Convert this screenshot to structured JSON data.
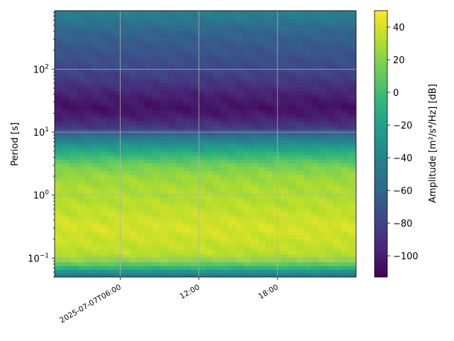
{
  "chart_data": {
    "type": "heatmap",
    "title": "",
    "xlabel": "",
    "ylabel": "Period [s]",
    "x_axis": {
      "type": "time",
      "range": [
        "2025-07-07T01:00:00",
        "2025-07-08T00:00:00"
      ],
      "ticks": [
        {
          "value": "2025-07-07T06:00:00",
          "label": "2025-07-07T06:00"
        },
        {
          "value": "2025-07-07T12:00:00",
          "label": "12:00"
        },
        {
          "value": "2025-07-07T18:00:00",
          "label": "18:00"
        }
      ]
    },
    "y_axis": {
      "scale": "log",
      "range": [
        0.05,
        850
      ],
      "ticks": [
        {
          "value": 0.1,
          "label": "10",
          "exp": "−1"
        },
        {
          "value": 1,
          "label": "10",
          "exp": "0"
        },
        {
          "value": 10,
          "label": "10",
          "exp": "1"
        },
        {
          "value": 100,
          "label": "10",
          "exp": "2"
        }
      ]
    },
    "grid": true,
    "colormap": "viridis",
    "colorbar": {
      "label": "Amplitude [m²/s⁴/Hz] [dB]",
      "range": [
        -113,
        50
      ],
      "ticks": [
        40,
        20,
        0,
        -20,
        -40,
        -60,
        -80,
        -100
      ]
    },
    "period_profile_db": [
      {
        "period": 0.05,
        "db": -55
      },
      {
        "period": 0.055,
        "db": -45
      },
      {
        "period": 0.065,
        "db": -20
      },
      {
        "period": 0.075,
        "db": 0
      },
      {
        "period": 0.09,
        "db": 22
      },
      {
        "period": 0.12,
        "db": 33
      },
      {
        "period": 0.2,
        "db": 37
      },
      {
        "period": 0.3,
        "db": 40
      },
      {
        "period": 0.5,
        "db": 36
      },
      {
        "period": 0.8,
        "db": 32
      },
      {
        "period": 1.2,
        "db": 30
      },
      {
        "period": 2,
        "db": 25
      },
      {
        "period": 3,
        "db": 15
      },
      {
        "period": 4,
        "db": 0
      },
      {
        "period": 6,
        "db": -25
      },
      {
        "period": 9,
        "db": -55
      },
      {
        "period": 12,
        "db": -85
      },
      {
        "period": 18,
        "db": -100
      },
      {
        "period": 25,
        "db": -105
      },
      {
        "period": 40,
        "db": -98
      },
      {
        "period": 60,
        "db": -88
      },
      {
        "period": 100,
        "db": -78
      },
      {
        "period": 200,
        "db": -70
      },
      {
        "period": 400,
        "db": -60
      },
      {
        "period": 700,
        "db": -45
      },
      {
        "period": 850,
        "db": -42
      }
    ]
  }
}
